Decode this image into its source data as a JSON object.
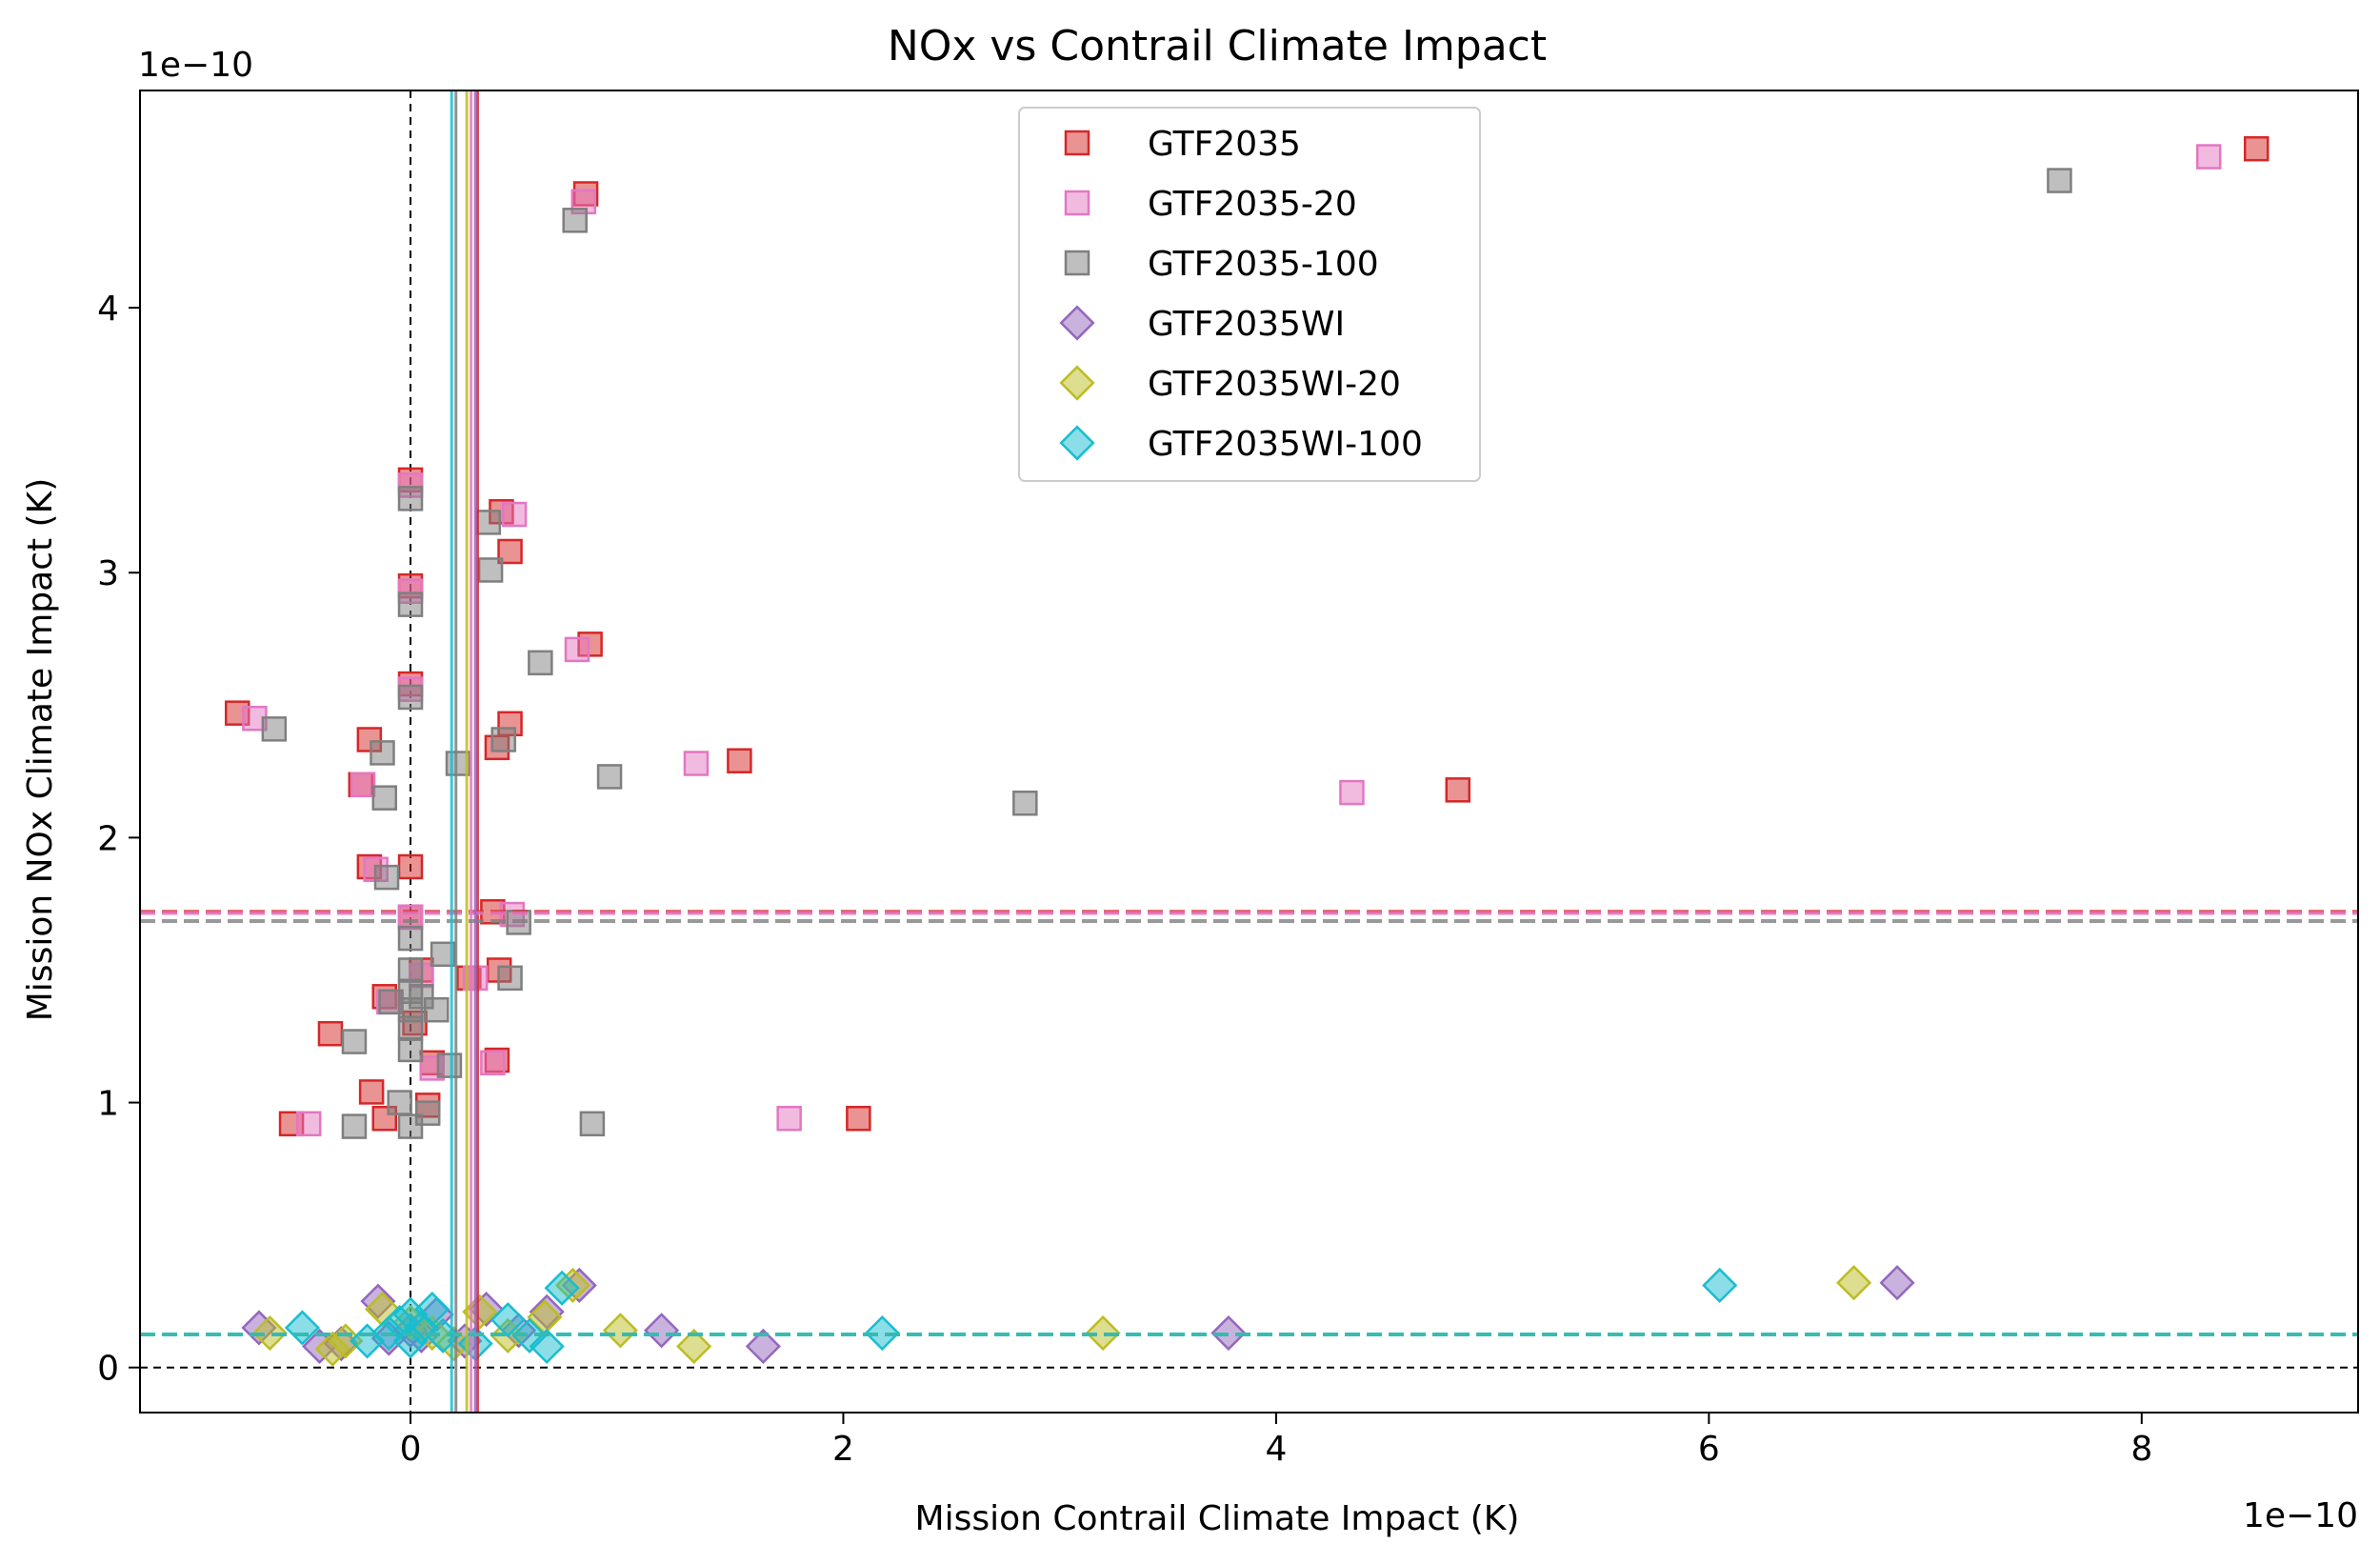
{
  "chart_data": {
    "type": "scatter",
    "title": "NOx vs Contrail Climate Impact",
    "xlabel": "Mission Contrail Climate Impact (K)",
    "ylabel": "Mission NOx Climate Impact (K)",
    "x_offset_text": "1e−10",
    "y_offset_text": "1e−10",
    "xlim": [
      -1.25,
      9.0
    ],
    "ylim": [
      -0.17,
      4.82
    ],
    "x_ticks": [
      0,
      2,
      4,
      6,
      8
    ],
    "y_ticks": [
      0,
      1,
      2,
      3,
      4
    ],
    "zero_lines": {
      "x": 0,
      "y": 0,
      "color": "#000000",
      "style": "dashed"
    },
    "legend_position": "upper center",
    "series": [
      {
        "name": "GTF2035",
        "marker": "square",
        "color": "#d62728",
        "mean_x": 0.31,
        "mean_y": 1.72,
        "points": [
          [
            -0.8,
            2.47
          ],
          [
            -0.55,
            0.92
          ],
          [
            -0.37,
            1.26
          ],
          [
            -0.23,
            2.2
          ],
          [
            -0.19,
            2.37
          ],
          [
            -0.19,
            1.89
          ],
          [
            -0.18,
            1.04
          ],
          [
            -0.12,
            1.4
          ],
          [
            -0.12,
            0.94
          ],
          [
            0,
            3.35
          ],
          [
            0,
            2.95
          ],
          [
            0,
            2.58
          ],
          [
            0,
            1.89
          ],
          [
            0,
            1.7
          ],
          [
            0.02,
            1.3
          ],
          [
            0.05,
            1.5
          ],
          [
            0.08,
            0.99
          ],
          [
            0.1,
            1.15
          ],
          [
            0.27,
            1.47
          ],
          [
            0.38,
            1.72
          ],
          [
            0.4,
            2.34
          ],
          [
            0.4,
            1.16
          ],
          [
            0.41,
            1.5
          ],
          [
            0.42,
            3.23
          ],
          [
            0.46,
            3.08
          ],
          [
            0.46,
            2.43
          ],
          [
            0.81,
            4.43
          ],
          [
            0.83,
            2.73
          ],
          [
            1.52,
            2.29
          ],
          [
            2.07,
            0.94
          ],
          [
            4.84,
            2.18
          ],
          [
            8.53,
            4.6
          ]
        ]
      },
      {
        "name": "GTF2035-20",
        "marker": "square",
        "color": "#e377c2",
        "mean_x": 0.28,
        "mean_y": 1.715,
        "points": [
          [
            -0.72,
            2.45
          ],
          [
            -0.47,
            0.92
          ],
          [
            -0.22,
            2.2
          ],
          [
            -0.16,
            1.88
          ],
          [
            -0.1,
            1.38
          ],
          [
            0,
            3.33
          ],
          [
            0,
            2.93
          ],
          [
            0,
            2.56
          ],
          [
            0,
            1.7
          ],
          [
            0.05,
            1.48
          ],
          [
            0.1,
            1.13
          ],
          [
            0.3,
            1.47
          ],
          [
            0.38,
            1.15
          ],
          [
            0.47,
            1.71
          ],
          [
            0.48,
            3.22
          ],
          [
            0.77,
            2.71
          ],
          [
            0.8,
            4.4
          ],
          [
            1.32,
            2.28
          ],
          [
            1.75,
            0.94
          ],
          [
            4.35,
            2.17
          ],
          [
            8.31,
            4.57
          ]
        ]
      },
      {
        "name": "GTF2035-100",
        "marker": "square",
        "color": "#7f7f7f",
        "mean_x": 0.21,
        "mean_y": 1.685,
        "points": [
          [
            -0.63,
            2.41
          ],
          [
            -0.26,
            1.23
          ],
          [
            -0.26,
            0.91
          ],
          [
            -0.13,
            2.32
          ],
          [
            -0.12,
            2.15
          ],
          [
            -0.11,
            1.85
          ],
          [
            -0.09,
            1.38
          ],
          [
            -0.05,
            1.0
          ],
          [
            0,
            3.28
          ],
          [
            0,
            2.88
          ],
          [
            0,
            2.53
          ],
          [
            0,
            1.62
          ],
          [
            0,
            1.5
          ],
          [
            0,
            1.42
          ],
          [
            0,
            1.35
          ],
          [
            0,
            1.28
          ],
          [
            0,
            1.2
          ],
          [
            0,
            0.91
          ],
          [
            0.05,
            1.4
          ],
          [
            0.08,
            0.96
          ],
          [
            0.12,
            1.35
          ],
          [
            0.15,
            1.56
          ],
          [
            0.18,
            1.14
          ],
          [
            0.22,
            2.28
          ],
          [
            0.36,
            3.19
          ],
          [
            0.37,
            3.01
          ],
          [
            0.43,
            2.37
          ],
          [
            0.46,
            1.47
          ],
          [
            0.5,
            1.68
          ],
          [
            0.6,
            2.66
          ],
          [
            0.76,
            4.33
          ],
          [
            0.84,
            0.92
          ],
          [
            0.92,
            2.23
          ],
          [
            2.84,
            2.13
          ],
          [
            7.62,
            4.48
          ]
        ]
      },
      {
        "name": "GTF2035WI",
        "marker": "diamond",
        "color": "#9467bd",
        "mean_x": 0.3,
        "mean_y": 0.125,
        "points": [
          [
            -0.7,
            0.15
          ],
          [
            -0.42,
            0.08
          ],
          [
            -0.32,
            0.09
          ],
          [
            -0.15,
            0.25
          ],
          [
            -0.1,
            0.11
          ],
          [
            0,
            0.14
          ],
          [
            0.05,
            0.12
          ],
          [
            0.12,
            0.2
          ],
          [
            0.25,
            0.1
          ],
          [
            0.35,
            0.22
          ],
          [
            0.5,
            0.14
          ],
          [
            0.63,
            0.21
          ],
          [
            0.78,
            0.31
          ],
          [
            1.16,
            0.14
          ],
          [
            1.63,
            0.08
          ],
          [
            3.78,
            0.13
          ],
          [
            6.87,
            0.32
          ]
        ]
      },
      {
        "name": "GTF2035WI-20",
        "marker": "diamond",
        "color": "#bcbd22",
        "mean_x": 0.26,
        "mean_y": 0.125,
        "points": [
          [
            -0.65,
            0.13
          ],
          [
            -0.36,
            0.07
          ],
          [
            -0.3,
            0.1
          ],
          [
            -0.13,
            0.22
          ],
          [
            0,
            0.17
          ],
          [
            0.1,
            0.13
          ],
          [
            0.2,
            0.09
          ],
          [
            0.32,
            0.21
          ],
          [
            0.45,
            0.12
          ],
          [
            0.62,
            0.19
          ],
          [
            0.75,
            0.31
          ],
          [
            0.97,
            0.14
          ],
          [
            1.31,
            0.08
          ],
          [
            3.2,
            0.13
          ],
          [
            6.67,
            0.32
          ]
        ]
      },
      {
        "name": "GTF2035WI-100",
        "marker": "diamond",
        "color": "#17becf",
        "mean_x": 0.19,
        "mean_y": 0.125,
        "points": [
          [
            -0.5,
            0.15
          ],
          [
            -0.2,
            0.1
          ],
          [
            -0.1,
            0.13
          ],
          [
            -0.05,
            0.17
          ],
          [
            0,
            0.2
          ],
          [
            0,
            0.1
          ],
          [
            0.05,
            0.15
          ],
          [
            0.1,
            0.22
          ],
          [
            0.15,
            0.12
          ],
          [
            0.3,
            0.09
          ],
          [
            0.45,
            0.18
          ],
          [
            0.55,
            0.12
          ],
          [
            0.63,
            0.08
          ],
          [
            0.7,
            0.3
          ],
          [
            2.18,
            0.13
          ],
          [
            6.05,
            0.31
          ]
        ]
      }
    ]
  }
}
